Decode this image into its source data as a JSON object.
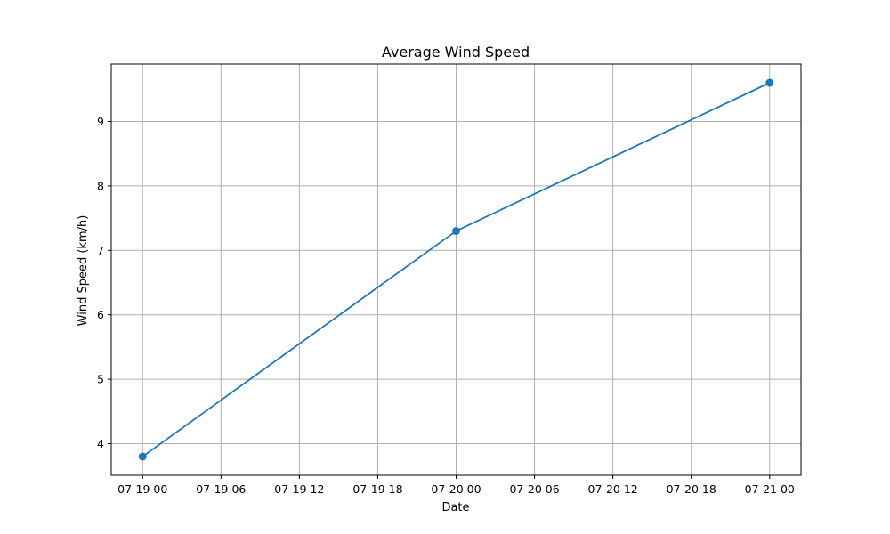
{
  "chart_data": {
    "type": "line",
    "title": "Average Wind Speed",
    "xlabel": "Date",
    "ylabel": "Wind Speed (km/h)",
    "x": [
      "2023-07-19 00:00",
      "2023-07-20 00:00",
      "2023-07-21 00:00"
    ],
    "series": [
      {
        "values": [
          3.8,
          7.3,
          9.6
        ]
      }
    ],
    "xlim": [
      "2023-07-18 21:36",
      "2023-07-21 02:24"
    ],
    "ylim": [
      3.51,
      9.89
    ],
    "x_ticks": [
      "07-19 00",
      "07-19 06",
      "07-19 12",
      "07-19 18",
      "07-20 00",
      "07-20 06",
      "07-20 12",
      "07-20 18",
      "07-21 00"
    ],
    "y_ticks": [
      "4",
      "5",
      "6",
      "7",
      "8",
      "9"
    ],
    "grid": true,
    "colors": {
      "line": "#1f77b4",
      "grid": "#b0b0b0"
    }
  }
}
